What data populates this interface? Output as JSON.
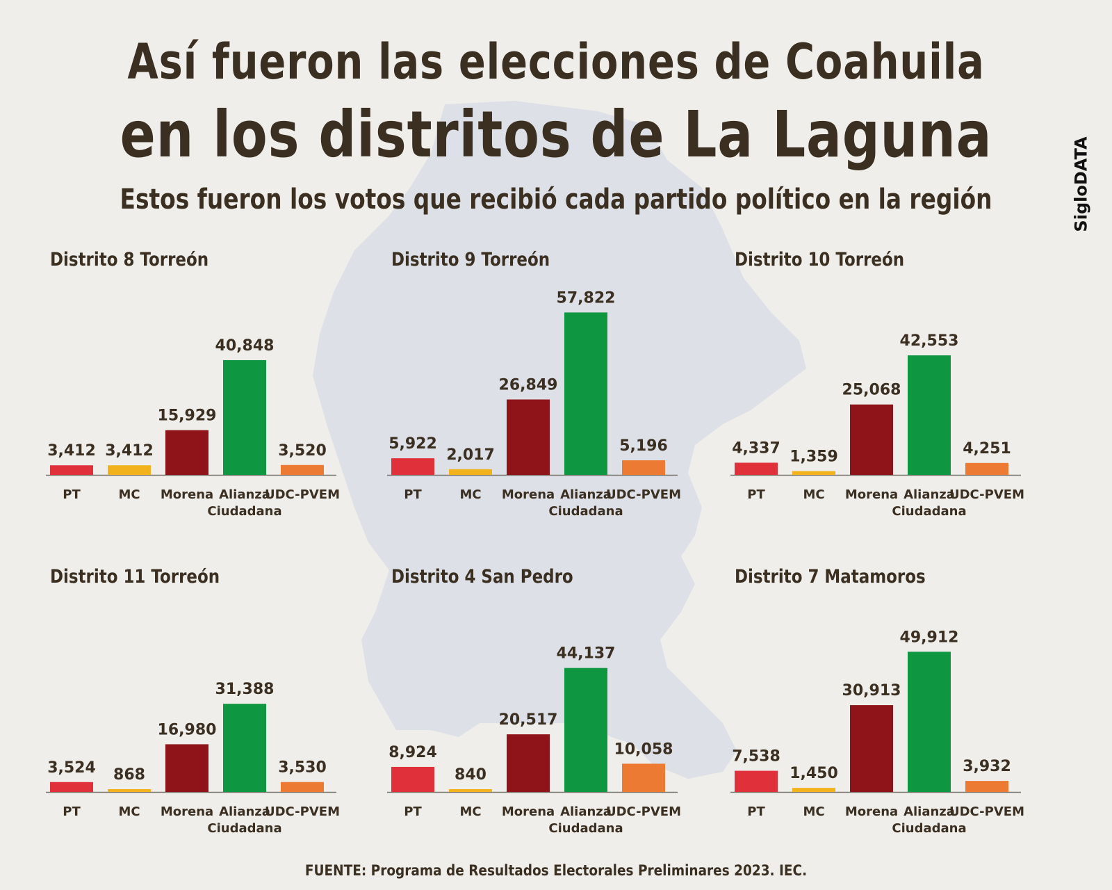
{
  "title_line1": "Así fueron las elecciones de Coahuila",
  "title_line2": "en los distritos de La Laguna",
  "subtitle": "Estos fueron los votos que recibió cada partido político en la región",
  "brand": "SigloDATA",
  "source": "FUENTE: Programa de Resultados Electorales Preliminares 2023. IEC.",
  "colors": {
    "PT": "#e0303a",
    "MC": "#f2b21c",
    "Morena": "#8f1419",
    "Alianza": "#0f9640",
    "UDC-PVEM": "#ec7a32",
    "text": "#3b2f22",
    "map": "#d9dde6"
  },
  "chart_data": [
    {
      "type": "bar",
      "title": "Distrito 8 Torreón",
      "categories": [
        "PT",
        "MC",
        "Morena",
        "Alianza Ciudadana",
        "UDC-PVEM"
      ],
      "values": [
        3412,
        3412,
        15929,
        40848,
        3520
      ],
      "value_labels": [
        "3,412",
        "3,412",
        "15,929",
        "40,848",
        "3,520"
      ]
    },
    {
      "type": "bar",
      "title": "Distrito 9 Torreón",
      "categories": [
        "PT",
        "MC",
        "Morena",
        "Alianza Ciudadana",
        "UDC-PVEM"
      ],
      "values": [
        5922,
        2017,
        26849,
        57822,
        5196
      ],
      "value_labels": [
        "5,922",
        "2,017",
        "26,849",
        "57,822",
        "5,196"
      ]
    },
    {
      "type": "bar",
      "title": "Distrito 10 Torreón",
      "categories": [
        "PT",
        "MC",
        "Morena",
        "Alianza Ciudadana",
        "UDC-PVEM"
      ],
      "values": [
        4337,
        1359,
        25068,
        42553,
        4251
      ],
      "value_labels": [
        "4,337",
        "1,359",
        "25,068",
        "42,553",
        "4,251"
      ]
    },
    {
      "type": "bar",
      "title": "Distrito 11 Torreón",
      "categories": [
        "PT",
        "MC",
        "Morena",
        "Alianza Ciudadana",
        "UDC-PVEM"
      ],
      "values": [
        3524,
        868,
        16980,
        31388,
        3530
      ],
      "value_labels": [
        "3,524",
        "868",
        "16,980",
        "31,388",
        "3,530"
      ]
    },
    {
      "type": "bar",
      "title": "Distrito 4 San Pedro",
      "categories": [
        "PT",
        "MC",
        "Morena",
        "Alianza Ciudadana",
        "UDC-PVEM"
      ],
      "values": [
        8924,
        840,
        20517,
        44137,
        10058
      ],
      "value_labels": [
        "8,924",
        "840",
        "20,517",
        "44,137",
        "10,058"
      ]
    },
    {
      "type": "bar",
      "title": "Distrito 7 Matamoros",
      "categories": [
        "PT",
        "MC",
        "Morena",
        "Alianza Ciudadana",
        "UDC-PVEM"
      ],
      "values": [
        7538,
        1450,
        30913,
        49912,
        3932
      ],
      "value_labels": [
        "7,538",
        "1,450",
        "30,913",
        "49,912",
        "3,932"
      ]
    }
  ]
}
